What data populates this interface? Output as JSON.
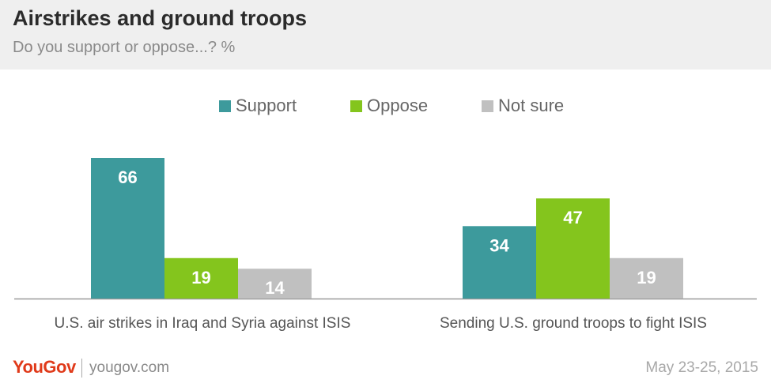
{
  "header": {
    "title": "Airstrikes and ground troops",
    "subtitle": "Do you support or oppose...? %"
  },
  "colors": {
    "support": "#3d9a9c",
    "oppose": "#84c51d",
    "not_sure": "#c0c0c0",
    "axis": "#999999",
    "brand": "#e03a1a"
  },
  "chart_data": {
    "type": "bar",
    "title": "Airstrikes and ground troops",
    "subtitle": "Do you support or oppose...? %",
    "categories": [
      "U.S. air strikes in Iraq and Syria against ISIS",
      "Sending U.S. ground troops to fight ISIS"
    ],
    "series": [
      {
        "name": "Support",
        "values": [
          66,
          34
        ]
      },
      {
        "name": "Oppose",
        "values": [
          19,
          47
        ]
      },
      {
        "name": "Not sure",
        "values": [
          14,
          19
        ]
      }
    ],
    "ylim": [
      0,
      70
    ],
    "grid": false,
    "legend_position": "top-center"
  },
  "footer": {
    "brand": "YouGov",
    "url": "yougov.com",
    "date": "May 23-25, 2015"
  }
}
